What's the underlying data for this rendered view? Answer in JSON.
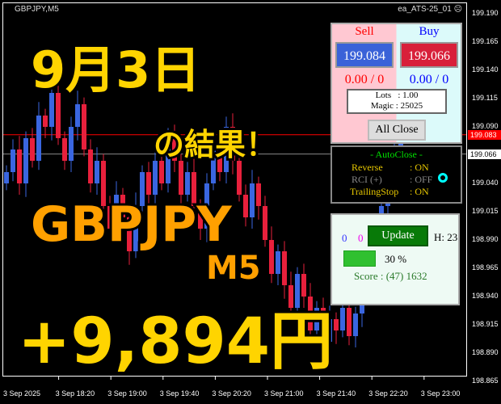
{
  "window": {
    "symbol_title": "GBPJPY,M5",
    "ea_name": "ea_ATS-25_01",
    "ea_status_icon": "frown-face-icon"
  },
  "price_axis": [
    "199.190",
    "199.165",
    "199.140",
    "199.115",
    "199.090",
    "199.066",
    "199.040",
    "199.015",
    "198.990",
    "198.965",
    "198.940",
    "198.915",
    "198.890",
    "198.865"
  ],
  "time_axis": [
    "3 Sep 2025",
    "3 Sep 18:20",
    "3 Sep 19:00",
    "3 Sep 19:40",
    "3 Sep 20:20",
    "3 Sep 21:00",
    "3 Sep 21:40",
    "3 Sep 22:20",
    "3 Sep 23:00"
  ],
  "price_labels": {
    "bid": "199.083",
    "ask": "199.066"
  },
  "colors": {
    "up_candle": "#3a66e0",
    "down_candle": "#e8203c",
    "bid_line": "#ff0000",
    "ask_line": "#888888",
    "overlay_yellow": "#ffd400",
    "overlay_orange": "#ffa000"
  },
  "chart_data": {
    "type": "candlestick",
    "symbol": "GBPJPY",
    "timeframe": "M5",
    "ylim": [
      198.865,
      199.19
    ],
    "close": [
      199.05,
      199.07,
      199.04,
      199.08,
      199.06,
      199.1,
      199.09,
      199.12,
      199.08,
      199.06,
      199.09,
      199.11,
      199.07,
      199.04,
      199.06,
      199.02,
      199.0,
      199.03,
      199.01,
      198.98,
      199.02,
      199.05,
      199.03,
      199.06,
      199.04,
      199.08,
      199.06,
      199.03,
      199.05,
      199.02,
      199.0,
      199.04,
      199.07,
      199.05,
      199.09,
      199.06,
      199.03,
      199.01,
      199.04,
      199.02,
      198.99,
      198.96,
      198.98,
      198.95,
      198.93,
      198.96,
      198.94,
      198.91,
      198.93,
      198.9,
      198.92,
      198.91,
      198.93,
      198.905,
      198.925,
      198.95,
      198.97,
      199.0,
      199.02,
      199.05,
      199.07,
      199.083
    ]
  },
  "overlay": {
    "date": "9月3日",
    "result": "の結果！",
    "pair": "GBPJPY",
    "tf": "M5",
    "profit": "+9,894円"
  },
  "trade_panel": {
    "sell_label": "Sell",
    "buy_label": "Buy",
    "sell_price": "199.084",
    "buy_price": "199.066",
    "sell_pl": "0.00 / 0",
    "buy_pl": "0.00 / 0",
    "lots": "Lots   : 1.00",
    "magic": "Magic : 25025",
    "all_close": "All Close"
  },
  "autoclose": {
    "title": "- AutoClose -",
    "rows": [
      {
        "label": "Reverse",
        "value": ": ON",
        "enabled": true
      },
      {
        "label": "RCI (+)",
        "value": ": OFF",
        "enabled": false
      },
      {
        "label": "TrailingStop",
        "value": ": ON",
        "enabled": true
      }
    ],
    "indicator_icon": "cyan-ring-icon"
  },
  "status_panel": {
    "count_blue": "0",
    "count_magenta": "0",
    "update": "Update",
    "hour": "H: 23",
    "progress_percent": 30,
    "progress_label": "30 %",
    "score": "Score : (47) 1632"
  }
}
